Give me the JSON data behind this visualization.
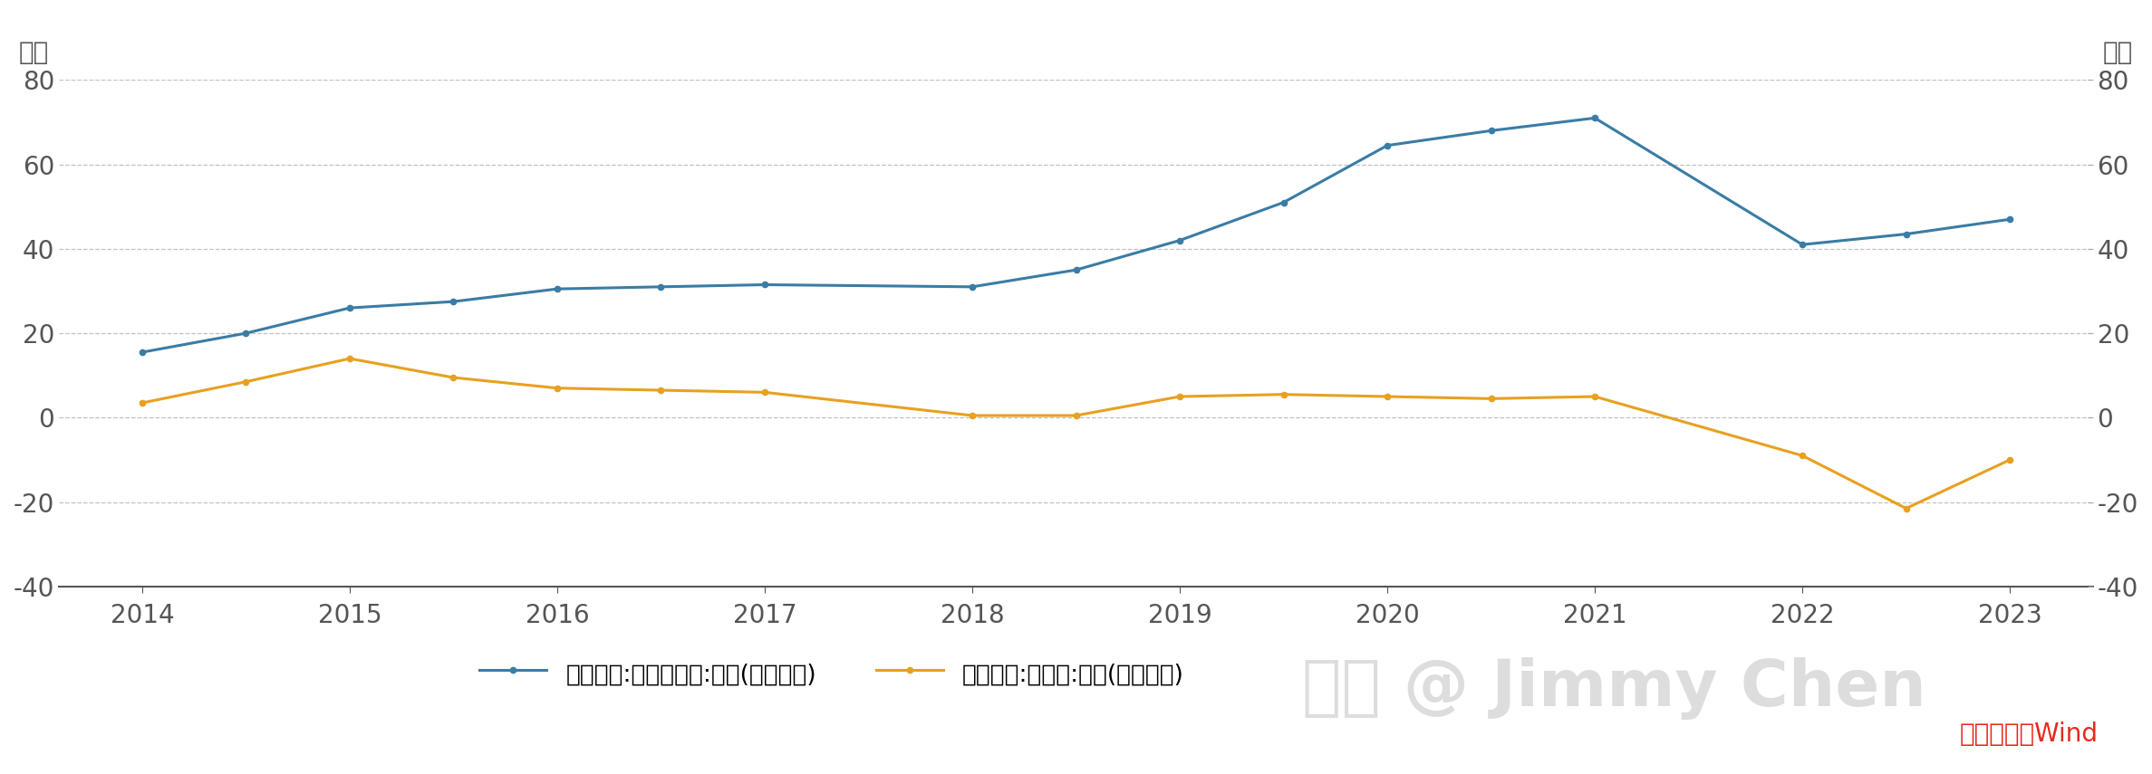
{
  "revenue_x": [
    2014,
    2014.5,
    2015,
    2015.5,
    2016,
    2016.5,
    2017,
    2018,
    2018.5,
    2019,
    2019.5,
    2020,
    2020.5,
    2021,
    2022,
    2022.5,
    2023
  ],
  "revenue_y": [
    15.5,
    20.0,
    26.0,
    27.5,
    30.5,
    31.0,
    31.5,
    31.0,
    35.0,
    42.0,
    51.0,
    64.5,
    68.0,
    71.0,
    41.0,
    43.5,
    47.0
  ],
  "profit_x": [
    2014,
    2014.5,
    2015,
    2015.5,
    2016,
    2016.5,
    2017,
    2018,
    2018.5,
    2019,
    2019.5,
    2020,
    2020.5,
    2021,
    2022,
    2022.5,
    2023
  ],
  "profit_y": [
    3.5,
    8.5,
    14.0,
    9.5,
    7.0,
    6.5,
    6.0,
    0.5,
    0.5,
    5.0,
    5.5,
    5.0,
    4.5,
    5.0,
    -9.0,
    -21.5,
    -10.0
  ],
  "revenue_color": "#3a7ca5",
  "profit_color": "#e8a020",
  "background_color": "#ffffff",
  "grid_color": "#bbbbbb",
  "ylim": [
    -40,
    80
  ],
  "yticks": [
    -40,
    -20,
    0,
    20,
    40,
    60,
    80
  ],
  "xticks": [
    2014,
    2015,
    2016,
    2017,
    2018,
    2019,
    2020,
    2021,
    2022,
    2023
  ],
  "xlim": [
    2013.6,
    2023.4
  ],
  "ylabel_left": "亿元",
  "ylabel_right": "亿元",
  "legend_revenue": "格力地产:营业总收入:年度(最后一条)",
  "legend_profit": "格力地产:净利润:年度(最后一条)",
  "source_text": "数据来源：Wind",
  "source_color": "#e8291c",
  "watermark_text": "知乎 @ Jimmy Chen",
  "watermark_color": "#cccccc",
  "tick_color": "#555555",
  "tick_fontsize": 20,
  "label_fontsize": 20,
  "legend_fontsize": 19,
  "source_fontsize": 20,
  "watermark_fontsize": 52
}
